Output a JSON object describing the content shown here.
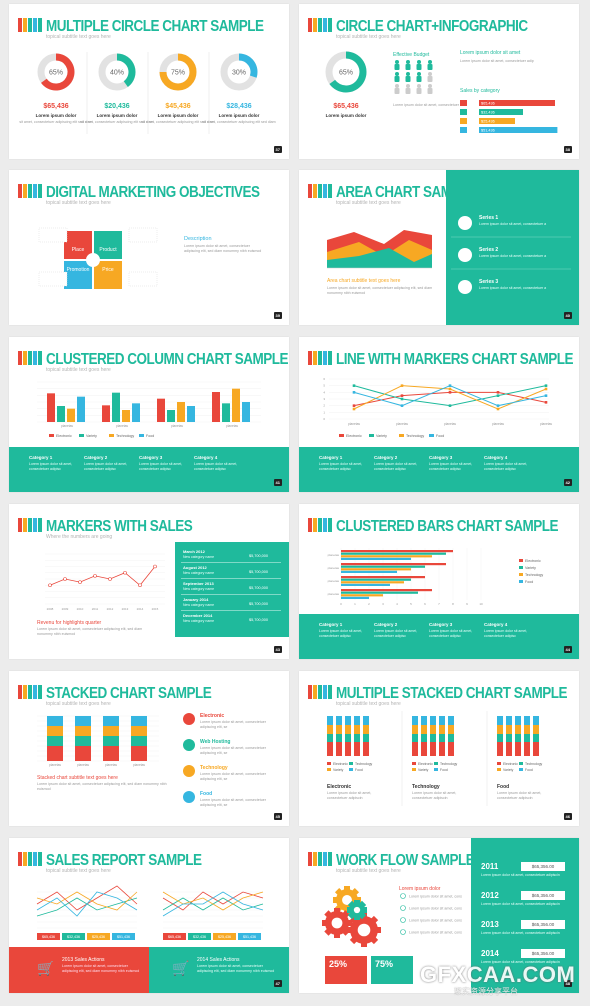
{
  "colors": {
    "teal": "#1fba9c",
    "red": "#e9473b",
    "orange": "#f7a823",
    "blue": "#35b6e0",
    "green": "#1fba9c",
    "gray": "#e0e0e0"
  },
  "common": {
    "subtitle": "topical subtitle text goes here",
    "lorem": "Lorem ipsum dolor sit amet, consectetuer adipiscing elit, sed diam nonummy nibh euismod"
  },
  "s1": {
    "title": "MULTIPLE CIRCLE CHART SAMPLE",
    "page": "37",
    "circles": [
      {
        "pct": "65%",
        "value": "$65,436",
        "fill": 0.65,
        "color": "#e9473b"
      },
      {
        "pct": "40%",
        "value": "$20,436",
        "fill": 0.4,
        "color": "#1fba9c"
      },
      {
        "pct": "75%",
        "value": "$45,436",
        "fill": 0.75,
        "color": "#f7a823"
      },
      {
        "pct": "30%",
        "value": "$28,436",
        "fill": 0.3,
        "color": "#35b6e0"
      }
    ],
    "body_title": "Lorem ipsum dolor",
    "body": "sit amet, consectetuer adipiscing elit sed diam"
  },
  "s2": {
    "title": "CIRCLE CHART+INFOGRAPHIC",
    "page": "38",
    "pct": "65%",
    "value": "$65,436",
    "people_title": "Effective Budget",
    "right_title": "Lorem ipsum dolor sit amet",
    "sales_title": "Sales by category",
    "sales": [
      {
        "label": "$65,436",
        "fill": 0.95,
        "color": "#e9473b"
      },
      {
        "label": "$32,436",
        "fill": 0.55,
        "color": "#1fba9c"
      },
      {
        "label": "$25,436",
        "fill": 0.45,
        "color": "#f7a823"
      },
      {
        "label": "$51,436",
        "fill": 0.98,
        "color": "#35b6e0"
      }
    ]
  },
  "s3": {
    "title": "DIGITAL MARKETING OBJECTIVES",
    "page": "39",
    "quad": [
      "Place",
      "Product",
      "Promotion",
      "Price"
    ],
    "desc_title": "Description"
  },
  "s4": {
    "title": "AREA CHART SAMPLE",
    "page": "40",
    "series": [
      "Series 1",
      "Series 2",
      "Series 3"
    ],
    "caption": "Area chart subtitle text goes here"
  },
  "s5": {
    "title": "CLUSTERED COLUMN CHART SAMPLE",
    "page": "41",
    "chart_data": {
      "type": "bar",
      "categories": [
        "planetas",
        "planetas",
        "planetas",
        "planetas"
      ],
      "series": [
        {
          "name": "Electronic",
          "values": [
            4.3,
            2.5,
            3.5,
            4.5
          ]
        },
        {
          "name": "Variety",
          "values": [
            2.4,
            4.4,
            1.8,
            2.8
          ]
        },
        {
          "name": "Technology",
          "values": [
            2.0,
            1.8,
            3.0,
            5.0
          ]
        },
        {
          "name": "Food",
          "values": [
            3.8,
            2.8,
            2.4,
            3.0
          ]
        }
      ],
      "ylim": [
        0,
        6
      ]
    },
    "cats": [
      "Category 1",
      "Category 2",
      "Category 3",
      "Category 4"
    ]
  },
  "s6": {
    "title": "LINE WITH MARKERS CHART SAMPLE",
    "page": "42",
    "chart_data": {
      "type": "line",
      "categories": [
        "planetas",
        "planetas",
        "planetas",
        "planetas",
        "planetas"
      ],
      "series": [
        {
          "name": "Electronic",
          "values": [
            2.0,
            3.5,
            4.0,
            4.0,
            2.5
          ]
        },
        {
          "name": "Variety",
          "values": [
            5.0,
            3.0,
            2.0,
            3.5,
            5.0
          ]
        },
        {
          "name": "Technology",
          "values": [
            1.5,
            5.0,
            4.5,
            1.5,
            4.5
          ]
        },
        {
          "name": "Food",
          "values": [
            4.0,
            2.0,
            5.0,
            2.0,
            3.5
          ]
        }
      ],
      "ylim": [
        0,
        6
      ]
    },
    "cats": [
      "Category 1",
      "Category 2",
      "Category 3",
      "Category 4"
    ]
  },
  "s7": {
    "title": "MARKERS WITH SALES",
    "subtitle": "Where the numbers are going",
    "page": "43",
    "caption": "Revenu for highlights quarter",
    "chart_data": {
      "type": "line",
      "categories": [
        "2008",
        "2009",
        "2010",
        "2011",
        "2012",
        "2013",
        "2014",
        "2015"
      ],
      "values": [
        3.0,
        4.0,
        3.5,
        4.5,
        4.0,
        5.0,
        3.0,
        6.0
      ],
      "ylim": [
        0,
        8
      ]
    },
    "months": [
      {
        "m": "March 2012",
        "v": "$5,700,000"
      },
      {
        "m": "August 2012",
        "v": "$5,700,000"
      },
      {
        "m": "September 2013",
        "v": "$5,700,000"
      },
      {
        "m": "January 2014",
        "v": "$5,700,000"
      },
      {
        "m": "December 2014",
        "v": "$5,700,000"
      }
    ],
    "row_label": "New category name"
  },
  "s8": {
    "title": "CLUSTERED BARS CHART SAMPLE",
    "page": "44",
    "chart_data": {
      "type": "bar",
      "categories": [
        "planetas",
        "planetas",
        "planetas",
        "planetas"
      ],
      "series": [
        {
          "name": "Electronic",
          "values": [
            8,
            7.5,
            6,
            6.5
          ]
        },
        {
          "name": "Variety",
          "values": [
            7.5,
            6,
            5,
            5.5
          ]
        },
        {
          "name": "Technology",
          "values": [
            6.5,
            5,
            4.5,
            3
          ]
        },
        {
          "name": "Food",
          "values": [
            5,
            4,
            3.5,
            2
          ]
        }
      ],
      "xlim": [
        0,
        10
      ]
    },
    "cats": [
      "Category 1",
      "Category 2",
      "Category 3",
      "Category 4"
    ]
  },
  "s9": {
    "title": "STACKED CHART SAMPLE",
    "page": "45",
    "caption": "Stacked chart subtitle text goes here",
    "chart_data": {
      "type": "bar",
      "categories": [
        "planetas",
        "planetas",
        "planetas",
        "planetas"
      ],
      "series": [
        {
          "name": "Electronic",
          "values": [
            3,
            3,
            3,
            3
          ]
        },
        {
          "name": "Variety",
          "values": [
            2,
            2,
            2,
            2
          ]
        },
        {
          "name": "Technology",
          "values": [
            2,
            2,
            2,
            2
          ]
        },
        {
          "name": "Food",
          "values": [
            2,
            2,
            2,
            2
          ]
        }
      ]
    },
    "items": [
      {
        "label": "Electronic",
        "color": "#e9473b"
      },
      {
        "label": "Web Hosting",
        "color": "#1fba9c"
      },
      {
        "label": "Technology",
        "color": "#f7a823"
      },
      {
        "label": "Food",
        "color": "#35b6e0"
      }
    ]
  },
  "s10": {
    "title": "MULTIPLE STACKED CHART SAMPLE",
    "page": "46",
    "groups": [
      "Electronic",
      "Technology",
      "Food"
    ]
  },
  "s11": {
    "title": "SALES REPORT SAMPLE",
    "page": "47",
    "tags": [
      "$65,436",
      "$32,436",
      "$25,436",
      "$51,436"
    ],
    "footer": [
      "2013 Sales Actions",
      "2014 Sales Actions"
    ]
  },
  "s12": {
    "title": "WORK FLOW SAMPLE",
    "page": "48",
    "flow_title": "Lorem ipsum dolor",
    "percents": [
      "25%",
      "75%"
    ],
    "years": [
      {
        "y": "2011",
        "v": "$65,356.00"
      },
      {
        "y": "2012",
        "v": "$65,356.00"
      },
      {
        "y": "2013",
        "v": "$65,356.00"
      },
      {
        "y": "2014",
        "v": "$65,356.00"
      }
    ]
  },
  "watermark": {
    "text": "GFXCAA.COM",
    "sub": "聚实资源分享平台"
  }
}
